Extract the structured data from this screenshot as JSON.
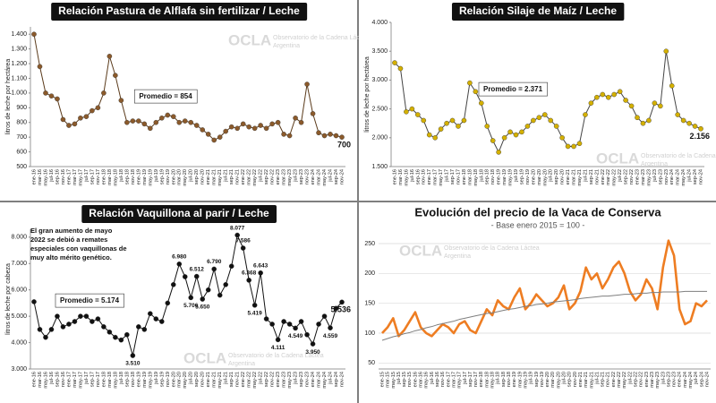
{
  "chart_data": [
    {
      "type": "line",
      "title": "Relación Pastura de Alflafa sin fertilizar / Leche",
      "title_box": true,
      "y_label": "litros de leche por hectárea",
      "annotation": "Promedio = 854",
      "watermark": [
        "OCLA",
        "Observatorio de la Cadena Láctea",
        "Argentina"
      ],
      "categories": [
        "ene-16",
        "mar-16",
        "may-16",
        "jul-16",
        "sep-16",
        "nov-16",
        "ene-17",
        "mar-17",
        "may-17",
        "jul-17",
        "sep-17",
        "nov-17",
        "ene-18",
        "mar-18",
        "may-18",
        "jul-18",
        "sep-18",
        "nov-18",
        "ene-19",
        "mar-19",
        "may-19",
        "jul-19",
        "sep-19",
        "nov-19",
        "ene-20",
        "mar-20",
        "may-20",
        "jul-20",
        "sep-20",
        "nov-20",
        "ene-21",
        "mar-21",
        "may-21",
        "jul-21",
        "sep-21",
        "nov-21",
        "ene-22",
        "mar-22",
        "may-22",
        "jul-22",
        "sep-22",
        "nov-22",
        "ene-23",
        "mar-23",
        "may-23",
        "jul-23",
        "sep-23",
        "nov-23",
        "ene-24",
        "mar-24",
        "may-24",
        "jul-24",
        "sep-24",
        "nov-24"
      ],
      "series": [
        {
          "color": "#5a3a1a",
          "marker_color": "#8b5a2b",
          "markers": true,
          "values": [
            1400,
            1180,
            1000,
            980,
            960,
            820,
            780,
            790,
            830,
            840,
            880,
            900,
            1000,
            1250,
            1120,
            950,
            800,
            810,
            810,
            790,
            760,
            800,
            830,
            850,
            840,
            800,
            810,
            800,
            780,
            750,
            720,
            680,
            700,
            740,
            770,
            760,
            790,
            770,
            760,
            780,
            760,
            790,
            800,
            720,
            710,
            830,
            800,
            1060,
            860,
            730,
            710,
            720,
            710,
            700
          ],
          "value_labels": [
            null,
            null,
            null,
            null,
            null,
            null,
            null,
            null,
            null,
            null,
            null,
            null,
            null,
            null,
            null,
            null,
            null,
            null,
            null,
            null,
            null,
            null,
            null,
            null,
            null,
            null,
            null,
            null,
            null,
            null,
            null,
            null,
            null,
            null,
            null,
            null,
            null,
            null,
            null,
            null,
            null,
            null,
            null,
            null,
            null,
            null,
            null,
            null,
            null,
            null,
            null,
            null,
            null,
            "700"
          ]
        }
      ],
      "ylim": [
        500,
        1450
      ],
      "yticks": [
        500,
        600,
        700,
        800,
        900,
        {
          "value": 1000,
          "label": "1.000"
        },
        {
          "value": 1100,
          "label": "1.100"
        },
        {
          "value": 1200,
          "label": "1.200"
        },
        {
          "value": 1300,
          "label": "1.300"
        },
        {
          "value": 1400,
          "label": "1.400"
        }
      ],
      "grid": false
    },
    {
      "type": "line",
      "title": "Relación Silaje de Maíz / Leche",
      "title_box": true,
      "y_label": "litros de leche por hectárea",
      "annotation": "Promedio = 2.371",
      "watermark": [
        "OCLA",
        "Observatorio de la Cadena Láctea",
        "Argentina"
      ],
      "categories": [
        "ene-16",
        "mar-16",
        "may-16",
        "jul-16",
        "sep-16",
        "nov-16",
        "ene-17",
        "mar-17",
        "may-17",
        "jul-17",
        "sep-17",
        "nov-17",
        "ene-18",
        "mar-18",
        "may-18",
        "jul-18",
        "sep-18",
        "nov-18",
        "ene-19",
        "mar-19",
        "may-19",
        "jul-19",
        "sep-19",
        "nov-19",
        "ene-20",
        "mar-20",
        "may-20",
        "jul-20",
        "sep-20",
        "nov-20",
        "ene-21",
        "mar-21",
        "may-21",
        "jul-21",
        "sep-21",
        "nov-21",
        "ene-22",
        "mar-22",
        "may-22",
        "jul-22",
        "sep-22",
        "nov-22",
        "ene-23",
        "mar-23",
        "may-23",
        "jul-23",
        "sep-23",
        "nov-23",
        "ene-24",
        "mar-24",
        "may-24",
        "jul-24",
        "sep-24",
        "nov-24"
      ],
      "series": [
        {
          "color": "#444444",
          "marker_color": "#d4b000",
          "markers": true,
          "values": [
            3300,
            3200,
            2450,
            2500,
            2400,
            2300,
            2050,
            2000,
            2150,
            2250,
            2300,
            2200,
            2300,
            2950,
            2800,
            2600,
            2200,
            1950,
            1750,
            2000,
            2100,
            2050,
            2100,
            2200,
            2300,
            2350,
            2400,
            2300,
            2200,
            2000,
            1850,
            1850,
            1900,
            2400,
            2600,
            2700,
            2750,
            2700,
            2750,
            2800,
            2650,
            2550,
            2350,
            2250,
            2300,
            2600,
            2550,
            3500,
            2900,
            2400,
            2300,
            2250,
            2200,
            2156
          ],
          "value_labels": [
            null,
            null,
            null,
            null,
            null,
            null,
            null,
            null,
            null,
            null,
            null,
            null,
            null,
            null,
            null,
            null,
            null,
            null,
            null,
            null,
            null,
            null,
            null,
            null,
            null,
            null,
            null,
            null,
            null,
            null,
            null,
            null,
            null,
            null,
            null,
            null,
            null,
            null,
            null,
            null,
            null,
            null,
            null,
            null,
            null,
            null,
            null,
            null,
            null,
            null,
            null,
            null,
            null,
            "2.156"
          ]
        }
      ],
      "ylim": [
        1500,
        4000
      ],
      "yticks": [
        {
          "value": 1500,
          "label": "1.500"
        },
        {
          "value": 2000,
          "label": "2.000"
        },
        {
          "value": 2500,
          "label": "2.500"
        },
        {
          "value": 3000,
          "label": "3.000"
        },
        {
          "value": 3500,
          "label": "3.500"
        },
        {
          "value": 4000,
          "label": "4.000"
        }
      ],
      "grid": false
    },
    {
      "type": "line",
      "title": "Relación Vaquillona al parir / Leche",
      "title_box": true,
      "y_label": "litros de leche por cabeza",
      "annotation": "Promedio = 5.174",
      "note": [
        "El gran  aumento de mayo",
        "2022 se debió a remates",
        "especiales con vaquillonas de",
        "muy alto mérito genético."
      ],
      "watermark": [
        "OCLA",
        "Observatorio de la Cadena Láctea",
        "Argentina"
      ],
      "categories": [
        "ene-16",
        "mar-16",
        "may-16",
        "jul-16",
        "sep-16",
        "nov-16",
        "ene-17",
        "mar-17",
        "may-17",
        "jul-17",
        "sep-17",
        "nov-17",
        "ene-18",
        "mar-18",
        "may-18",
        "jul-18",
        "sep-18",
        "nov-18",
        "ene-19",
        "mar-19",
        "may-19",
        "jul-19",
        "sep-19",
        "nov-19",
        "ene-20",
        "mar-20",
        "may-20",
        "jul-20",
        "sep-20",
        "nov-20",
        "ene-21",
        "mar-21",
        "may-21",
        "jul-21",
        "sep-21",
        "nov-21",
        "ene-22",
        "mar-22",
        "may-22",
        "jul-22",
        "sep-22",
        "nov-22",
        "ene-23",
        "mar-23",
        "may-23",
        "jul-23",
        "sep-23",
        "nov-23",
        "ene-24",
        "mar-24",
        "may-24",
        "jul-24",
        "sep-24",
        "nov-24"
      ],
      "series": [
        {
          "color": "#111111",
          "marker_color": "#111111",
          "markers": true,
          "values": [
            5550,
            4500,
            4200,
            4500,
            5000,
            4600,
            4700,
            4800,
            5000,
            5000,
            4800,
            4900,
            4600,
            4400,
            4200,
            4100,
            4300,
            3510,
            4600,
            4500,
            5100,
            4900,
            4800,
            5500,
            6200,
            6980,
            6500,
            5706,
            6512,
            5650,
            6000,
            6790,
            5800,
            6200,
            6900,
            8077,
            7586,
            6368,
            5419,
            6643,
            4900,
            4700,
            4111,
            4800,
            4700,
            4549,
            4800,
            4300,
            3950,
            4700,
            5000,
            4559,
            5300,
            5536
          ],
          "value_labels": [
            null,
            null,
            null,
            null,
            null,
            null,
            null,
            null,
            null,
            null,
            null,
            null,
            null,
            null,
            null,
            null,
            null,
            "3.510",
            null,
            null,
            null,
            null,
            null,
            null,
            null,
            "6.980",
            null,
            "5.706",
            "6.512",
            "5.650",
            null,
            "6.790",
            null,
            null,
            null,
            "8.077",
            "7.586",
            "6.368",
            "5.419",
            "6.643",
            null,
            null,
            "4.111",
            null,
            null,
            "4.549",
            null,
            null,
            "3.950",
            null,
            null,
            "4.559",
            null,
            "5.536"
          ]
        }
      ],
      "ylim": [
        3000,
        8300
      ],
      "yticks": [
        {
          "value": 3000,
          "label": "3.000"
        },
        {
          "value": 4000,
          "label": "4.000"
        },
        {
          "value": 5000,
          "label": "5.000"
        },
        {
          "value": 6000,
          "label": "6.000"
        },
        {
          "value": 7000,
          "label": "7.000"
        },
        {
          "value": 8000,
          "label": "8.000"
        }
      ],
      "grid": false
    },
    {
      "type": "line",
      "title": "Evolución del precio de la Vaca de Conserva",
      "subtitle": "- Base enero 2015 = 100 -",
      "title_box": false,
      "watermark": [
        "OCLA",
        "Observatorio de la Cadena Láctea",
        "Argentina"
      ],
      "categories": [
        "ene-15",
        "mar-15",
        "may-15",
        "jul-15",
        "sep-15",
        "nov-15",
        "ene-16",
        "mar-16",
        "may-16",
        "jul-16",
        "sep-16",
        "nov-16",
        "ene-17",
        "mar-17",
        "may-17",
        "jul-17",
        "sep-17",
        "nov-17",
        "ene-18",
        "mar-18",
        "may-18",
        "jul-18",
        "sep-18",
        "nov-18",
        "ene-19",
        "mar-19",
        "may-19",
        "jul-19",
        "sep-19",
        "nov-19",
        "ene-20",
        "mar-20",
        "may-20",
        "jul-20",
        "sep-20",
        "nov-20",
        "ene-21",
        "mar-21",
        "may-21",
        "jul-21",
        "sep-21",
        "nov-21",
        "ene-22",
        "mar-22",
        "may-22",
        "jul-22",
        "sep-22",
        "nov-22",
        "ene-23",
        "mar-23",
        "may-23",
        "jul-23",
        "sep-23",
        "nov-23",
        "ene-24",
        "mar-24",
        "may-24",
        "jul-24",
        "sep-24",
        "nov-24"
      ],
      "series": [
        {
          "color": "#ee7d22",
          "markers": false,
          "width": 2.6,
          "values": [
            100,
            110,
            125,
            95,
            105,
            120,
            135,
            110,
            100,
            95,
            105,
            115,
            110,
            100,
            115,
            120,
            105,
            100,
            120,
            140,
            130,
            155,
            145,
            140,
            160,
            175,
            140,
            150,
            165,
            155,
            145,
            150,
            160,
            180,
            140,
            150,
            170,
            210,
            190,
            200,
            175,
            190,
            210,
            220,
            200,
            170,
            155,
            165,
            190,
            175,
            140,
            210,
            255,
            230,
            140,
            115,
            120,
            150,
            145,
            155
          ]
        },
        {
          "color": "#7f7f7f",
          "markers": false,
          "width": 1,
          "values": [
            88,
            91,
            94,
            96,
            99,
            101,
            104,
            106,
            109,
            111,
            114,
            116,
            118,
            120,
            123,
            125,
            127,
            129,
            131,
            133,
            134,
            136,
            138,
            140,
            141,
            143,
            145,
            146,
            148,
            149,
            150,
            152,
            153,
            154,
            155,
            156,
            158,
            159,
            160,
            161,
            162,
            162,
            163,
            164,
            165,
            165,
            166,
            167,
            167,
            168,
            168,
            169,
            169,
            169,
            169,
            170,
            170,
            170,
            170,
            170
          ]
        }
      ],
      "ylim": [
        40,
        265
      ],
      "yticks": [
        50,
        100,
        150,
        200,
        250
      ],
      "grid": true
    }
  ]
}
